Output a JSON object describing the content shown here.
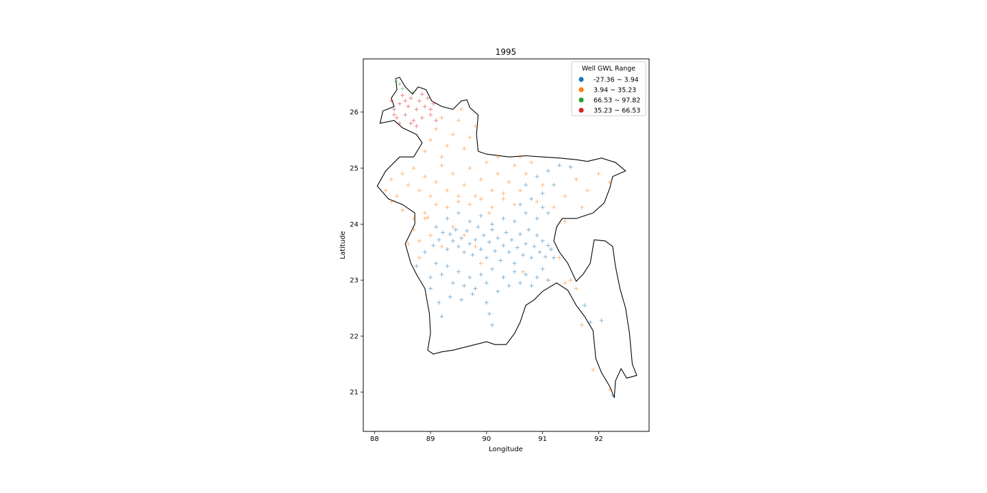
{
  "chart_data": {
    "type": "scatter",
    "title": "1995",
    "xlabel": "Longitude",
    "ylabel": "Latitude",
    "xlim": [
      87.8,
      92.9
    ],
    "ylim": [
      20.3,
      26.95
    ],
    "xticks": [
      88,
      89,
      90,
      91,
      92
    ],
    "yticks": [
      21,
      22,
      23,
      24,
      25,
      26
    ],
    "grid": false,
    "marker": "+",
    "legend": {
      "title": "Well GWL Range",
      "position": "top-right",
      "entries": [
        {
          "label": "-27.36 ~ 3.94",
          "color": "#1f77b4"
        },
        {
          "label": "3.94 ~ 35.23",
          "color": "#ff7f0e"
        },
        {
          "label": "66.53 ~ 97.82",
          "color": "#2ca02c"
        },
        {
          "label": "35.23 ~ 66.53",
          "color": "#d62728"
        }
      ]
    },
    "boundary": [
      [
        88.38,
        26.6
      ],
      [
        88.45,
        26.62
      ],
      [
        88.55,
        26.45
      ],
      [
        88.68,
        26.32
      ],
      [
        88.78,
        26.45
      ],
      [
        88.92,
        26.4
      ],
      [
        89.02,
        26.2
      ],
      [
        89.2,
        26.1
      ],
      [
        89.4,
        26.05
      ],
      [
        89.55,
        26.2
      ],
      [
        89.65,
        26.22
      ],
      [
        89.7,
        26.08
      ],
      [
        89.85,
        25.95
      ],
      [
        89.82,
        25.6
      ],
      [
        89.85,
        25.3
      ],
      [
        90.0,
        25.25
      ],
      [
        90.4,
        25.2
      ],
      [
        90.7,
        25.22
      ],
      [
        91.0,
        25.2
      ],
      [
        91.3,
        25.18
      ],
      [
        91.6,
        25.15
      ],
      [
        91.8,
        25.12
      ],
      [
        92.05,
        25.18
      ],
      [
        92.3,
        25.1
      ],
      [
        92.48,
        24.95
      ],
      [
        92.25,
        24.85
      ],
      [
        92.2,
        24.65
      ],
      [
        92.1,
        24.38
      ],
      [
        91.9,
        24.2
      ],
      [
        91.6,
        24.1
      ],
      [
        91.35,
        24.1
      ],
      [
        91.25,
        23.95
      ],
      [
        91.2,
        23.7
      ],
      [
        91.3,
        23.5
      ],
      [
        91.45,
        23.3
      ],
      [
        91.6,
        22.98
      ],
      [
        91.72,
        23.1
      ],
      [
        91.85,
        23.3
      ],
      [
        91.92,
        23.72
      ],
      [
        92.12,
        23.7
      ],
      [
        92.25,
        23.6
      ],
      [
        92.3,
        23.25
      ],
      [
        92.38,
        22.85
      ],
      [
        92.48,
        22.5
      ],
      [
        92.55,
        22.05
      ],
      [
        92.6,
        21.5
      ],
      [
        92.68,
        21.3
      ],
      [
        92.5,
        21.25
      ],
      [
        92.4,
        21.42
      ],
      [
        92.3,
        21.2
      ],
      [
        92.28,
        20.9
      ],
      [
        92.2,
        21.1
      ],
      [
        92.05,
        21.35
      ],
      [
        91.95,
        21.6
      ],
      [
        91.9,
        22.1
      ],
      [
        91.75,
        22.35
      ],
      [
        91.6,
        22.55
      ],
      [
        91.45,
        22.82
      ],
      [
        91.25,
        22.95
      ],
      [
        91.0,
        22.8
      ],
      [
        90.85,
        22.65
      ],
      [
        90.7,
        22.55
      ],
      [
        90.6,
        22.25
      ],
      [
        90.5,
        22.05
      ],
      [
        90.35,
        21.85
      ],
      [
        90.15,
        21.85
      ],
      [
        90.0,
        21.9
      ],
      [
        89.8,
        21.85
      ],
      [
        89.6,
        21.8
      ],
      [
        89.4,
        21.75
      ],
      [
        89.2,
        21.72
      ],
      [
        89.05,
        21.68
      ],
      [
        88.95,
        21.75
      ],
      [
        89.0,
        22.05
      ],
      [
        88.98,
        22.4
      ],
      [
        88.9,
        22.85
      ],
      [
        88.75,
        23.1
      ],
      [
        88.65,
        23.3
      ],
      [
        88.55,
        23.65
      ],
      [
        88.72,
        24.0
      ],
      [
        88.72,
        24.2
      ],
      [
        88.5,
        24.35
      ],
      [
        88.25,
        24.45
      ],
      [
        88.05,
        24.68
      ],
      [
        88.2,
        24.95
      ],
      [
        88.45,
        25.2
      ],
      [
        88.7,
        25.2
      ],
      [
        88.85,
        25.45
      ],
      [
        88.75,
        25.6
      ],
      [
        88.5,
        25.72
      ],
      [
        88.35,
        25.85
      ],
      [
        88.1,
        25.8
      ],
      [
        88.15,
        26.02
      ],
      [
        88.35,
        26.1
      ],
      [
        88.3,
        26.25
      ],
      [
        88.4,
        26.4
      ],
      [
        88.38,
        26.6
      ]
    ],
    "series": [
      {
        "name": "-27.36 ~ 3.94",
        "color": "#1f77b4",
        "points": [
          [
            89.05,
            23.62
          ],
          [
            89.15,
            23.72
          ],
          [
            89.22,
            23.85
          ],
          [
            89.3,
            23.55
          ],
          [
            89.35,
            23.82
          ],
          [
            89.4,
            23.7
          ],
          [
            89.45,
            23.9
          ],
          [
            89.5,
            23.6
          ],
          [
            89.55,
            23.75
          ],
          [
            89.6,
            23.5
          ],
          [
            89.65,
            23.88
          ],
          [
            89.7,
            23.65
          ],
          [
            89.75,
            23.45
          ],
          [
            89.8,
            23.72
          ],
          [
            89.85,
            23.95
          ],
          [
            89.9,
            23.55
          ],
          [
            89.95,
            23.8
          ],
          [
            90.0,
            23.4
          ],
          [
            90.05,
            23.68
          ],
          [
            90.1,
            23.9
          ],
          [
            90.15,
            23.52
          ],
          [
            90.2,
            23.75
          ],
          [
            90.25,
            23.35
          ],
          [
            90.3,
            23.62
          ],
          [
            90.35,
            23.85
          ],
          [
            90.4,
            23.5
          ],
          [
            90.45,
            23.72
          ],
          [
            90.5,
            23.3
          ],
          [
            90.55,
            23.58
          ],
          [
            90.6,
            23.82
          ],
          [
            90.65,
            23.45
          ],
          [
            90.7,
            23.65
          ],
          [
            90.75,
            23.9
          ],
          [
            90.8,
            23.4
          ],
          [
            90.85,
            23.6
          ],
          [
            90.9,
            23.8
          ],
          [
            90.95,
            23.5
          ],
          [
            91.0,
            23.7
          ],
          [
            91.05,
            23.42
          ],
          [
            91.1,
            23.62
          ],
          [
            91.15,
            23.55
          ],
          [
            91.2,
            23.4
          ],
          [
            89.1,
            23.3
          ],
          [
            89.2,
            23.1
          ],
          [
            89.3,
            23.25
          ],
          [
            89.4,
            22.95
          ],
          [
            89.5,
            23.15
          ],
          [
            89.6,
            22.9
          ],
          [
            89.7,
            23.05
          ],
          [
            89.8,
            22.85
          ],
          [
            89.9,
            23.1
          ],
          [
            90.0,
            22.95
          ],
          [
            90.1,
            23.2
          ],
          [
            90.2,
            22.8
          ],
          [
            90.3,
            23.05
          ],
          [
            90.4,
            22.9
          ],
          [
            90.5,
            23.15
          ],
          [
            90.6,
            22.95
          ],
          [
            90.7,
            23.1
          ],
          [
            90.8,
            22.9
          ],
          [
            90.9,
            23.05
          ],
          [
            91.0,
            23.2
          ],
          [
            91.1,
            23.0
          ],
          [
            89.0,
            22.85
          ],
          [
            89.15,
            22.6
          ],
          [
            89.35,
            22.7
          ],
          [
            89.55,
            22.65
          ],
          [
            89.75,
            22.75
          ],
          [
            90.0,
            22.6
          ],
          [
            89.2,
            22.35
          ],
          [
            90.05,
            22.4
          ],
          [
            90.1,
            22.2
          ],
          [
            91.75,
            22.55
          ],
          [
            91.85,
            22.25
          ],
          [
            92.05,
            22.28
          ],
          [
            92.25,
            20.95
          ],
          [
            89.3,
            24.1
          ],
          [
            89.5,
            24.2
          ],
          [
            89.7,
            24.05
          ],
          [
            89.9,
            24.15
          ],
          [
            90.1,
            24.0
          ],
          [
            90.3,
            24.1
          ],
          [
            90.5,
            24.05
          ],
          [
            90.7,
            24.2
          ],
          [
            90.9,
            24.1
          ],
          [
            91.1,
            24.2
          ],
          [
            90.6,
            24.35
          ],
          [
            90.8,
            24.45
          ],
          [
            91.0,
            24.55
          ],
          [
            91.2,
            24.7
          ],
          [
            90.9,
            24.85
          ],
          [
            91.1,
            24.95
          ],
          [
            91.3,
            25.05
          ],
          [
            91.5,
            25.02
          ],
          [
            90.7,
            24.7
          ],
          [
            91.0,
            24.3
          ],
          [
            89.1,
            23.95
          ],
          [
            88.9,
            23.5
          ],
          [
            88.75,
            23.25
          ],
          [
            89.0,
            23.05
          ]
        ]
      },
      {
        "name": "3.94 ~ 35.23",
        "color": "#ff7f0e",
        "points": [
          [
            88.2,
            24.6
          ],
          [
            88.3,
            24.8
          ],
          [
            88.4,
            24.5
          ],
          [
            88.5,
            24.9
          ],
          [
            88.6,
            24.7
          ],
          [
            88.7,
            25.0
          ],
          [
            88.8,
            24.6
          ],
          [
            88.9,
            24.85
          ],
          [
            89.0,
            24.5
          ],
          [
            89.1,
            24.75
          ],
          [
            89.2,
            25.05
          ],
          [
            89.3,
            24.6
          ],
          [
            89.4,
            24.9
          ],
          [
            89.5,
            24.4
          ],
          [
            89.6,
            24.7
          ],
          [
            89.7,
            25.0
          ],
          [
            89.8,
            24.5
          ],
          [
            89.9,
            24.8
          ],
          [
            90.0,
            25.1
          ],
          [
            90.1,
            24.6
          ],
          [
            90.2,
            24.9
          ],
          [
            90.3,
            24.45
          ],
          [
            90.4,
            24.75
          ],
          [
            90.5,
            25.05
          ],
          [
            90.6,
            24.6
          ],
          [
            90.7,
            24.9
          ],
          [
            90.8,
            25.1
          ],
          [
            90.9,
            24.4
          ],
          [
            91.0,
            24.7
          ],
          [
            91.2,
            24.3
          ],
          [
            91.4,
            24.5
          ],
          [
            91.6,
            24.8
          ],
          [
            91.8,
            24.6
          ],
          [
            92.0,
            24.9
          ],
          [
            92.2,
            24.75
          ],
          [
            91.7,
            24.3
          ],
          [
            88.3,
            24.4
          ],
          [
            88.5,
            24.25
          ],
          [
            88.7,
            24.1
          ],
          [
            88.9,
            24.2
          ],
          [
            89.1,
            24.35
          ],
          [
            89.3,
            24.3
          ],
          [
            89.5,
            24.5
          ],
          [
            89.7,
            24.35
          ],
          [
            89.9,
            24.45
          ],
          [
            90.1,
            24.3
          ],
          [
            90.3,
            24.55
          ],
          [
            90.5,
            24.35
          ],
          [
            88.9,
            25.3
          ],
          [
            89.0,
            25.5
          ],
          [
            89.1,
            25.7
          ],
          [
            89.2,
            25.9
          ],
          [
            89.3,
            25.4
          ],
          [
            89.4,
            25.6
          ],
          [
            89.5,
            25.85
          ],
          [
            89.6,
            25.35
          ],
          [
            89.7,
            25.55
          ],
          [
            89.8,
            25.75
          ],
          [
            89.55,
            26.05
          ],
          [
            89.2,
            25.2
          ],
          [
            88.7,
            23.9
          ],
          [
            88.8,
            23.7
          ],
          [
            88.9,
            24.1
          ],
          [
            88.95,
            24.12
          ],
          [
            89.0,
            23.8
          ],
          [
            89.2,
            23.6
          ],
          [
            89.4,
            23.95
          ],
          [
            89.6,
            23.8
          ],
          [
            89.8,
            23.6
          ],
          [
            88.6,
            23.65
          ],
          [
            88.8,
            23.4
          ],
          [
            90.2,
            25.2
          ],
          [
            90.6,
            25.2
          ],
          [
            91.4,
            24.05
          ],
          [
            91.5,
            23.0
          ],
          [
            91.6,
            22.85
          ],
          [
            91.3,
            23.4
          ],
          [
            91.4,
            22.95
          ],
          [
            90.65,
            23.15
          ],
          [
            91.9,
            21.4
          ],
          [
            92.2,
            21.05
          ],
          [
            91.7,
            22.2
          ],
          [
            89.9,
            23.3
          ],
          [
            90.05,
            24.2
          ]
        ]
      },
      {
        "name": "66.53 ~ 97.82",
        "color": "#2ca02c",
        "points": [
          [
            88.38,
            26.55
          ],
          [
            88.45,
            26.5
          ],
          [
            88.5,
            26.42
          ],
          [
            88.68,
            26.35
          ]
        ]
      },
      {
        "name": "35.23 ~ 66.53",
        "color": "#d62728",
        "points": [
          [
            88.3,
            26.2
          ],
          [
            88.35,
            26.05
          ],
          [
            88.4,
            25.9
          ],
          [
            88.45,
            26.15
          ],
          [
            88.5,
            26.3
          ],
          [
            88.55,
            25.95
          ],
          [
            88.6,
            26.1
          ],
          [
            88.65,
            26.25
          ],
          [
            88.7,
            25.85
          ],
          [
            88.75,
            26.05
          ],
          [
            88.8,
            26.2
          ],
          [
            88.85,
            25.9
          ],
          [
            88.9,
            26.1
          ],
          [
            88.95,
            26.25
          ],
          [
            89.0,
            25.95
          ],
          [
            89.05,
            26.15
          ],
          [
            89.1,
            25.85
          ],
          [
            88.45,
            25.8
          ],
          [
            88.35,
            25.95
          ],
          [
            88.55,
            26.2
          ],
          [
            88.65,
            25.8
          ],
          [
            88.85,
            26.32
          ],
          [
            89.0,
            26.05
          ],
          [
            88.75,
            25.75
          ]
        ]
      }
    ]
  }
}
